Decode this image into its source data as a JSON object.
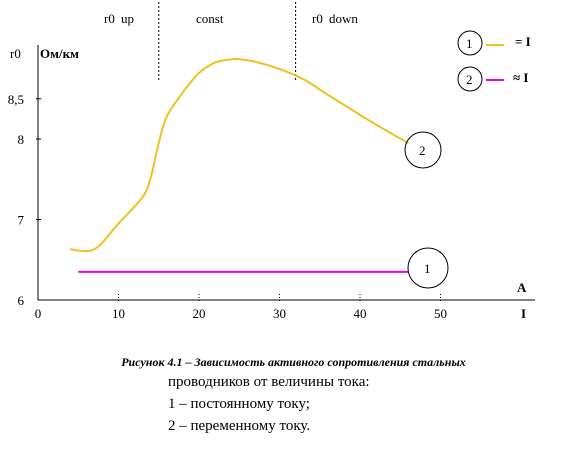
{
  "chart_data": {
    "type": "line",
    "ylabel_symbol": "r0",
    "ylabel_unit": "Ом/км",
    "xlabel_top": "А",
    "xlabel_bottom": "I",
    "x_ticks": [
      0,
      10,
      20,
      30,
      40,
      50
    ],
    "y_ticks": [
      {
        "value": 6,
        "label": "6"
      },
      {
        "value": 7,
        "label": "7"
      },
      {
        "value": 8,
        "label": "8"
      },
      {
        "value": 8.5,
        "label": "8,5"
      }
    ],
    "xlim": [
      0,
      60
    ],
    "ylim": [
      6,
      9.2
    ],
    "regions": [
      {
        "label": "r0",
        "arrow": "up"
      },
      {
        "label": "const",
        "arrow": ""
      },
      {
        "label": "r0",
        "arrow": "down"
      }
    ],
    "region_bounds_x": [
      15,
      32
    ],
    "series": [
      {
        "marker": "1",
        "legend_label": "= I",
        "color": "#e800e8",
        "x": [
          5,
          46
        ],
        "y": [
          6.35,
          6.35
        ]
      },
      {
        "marker": "2",
        "legend_label": "≈ I",
        "color": "#f0c020",
        "x": [
          4,
          7,
          10,
          13,
          14,
          15,
          16,
          18,
          20,
          22,
          24,
          25,
          27,
          30,
          33,
          36,
          40,
          43,
          46
        ],
        "y": [
          6.63,
          6.63,
          6.95,
          7.28,
          7.52,
          7.95,
          8.28,
          8.58,
          8.82,
          8.95,
          8.99,
          8.99,
          8.96,
          8.87,
          8.74,
          8.55,
          8.3,
          8.12,
          7.95
        ]
      }
    ]
  },
  "caption": {
    "title": "Рисунок 4.1 – Зависимость активного сопротивления стальных",
    "line2": "проводников от величины тока:",
    "line3": "1 – постоянному току;",
    "line4": "2 – переменному току."
  }
}
